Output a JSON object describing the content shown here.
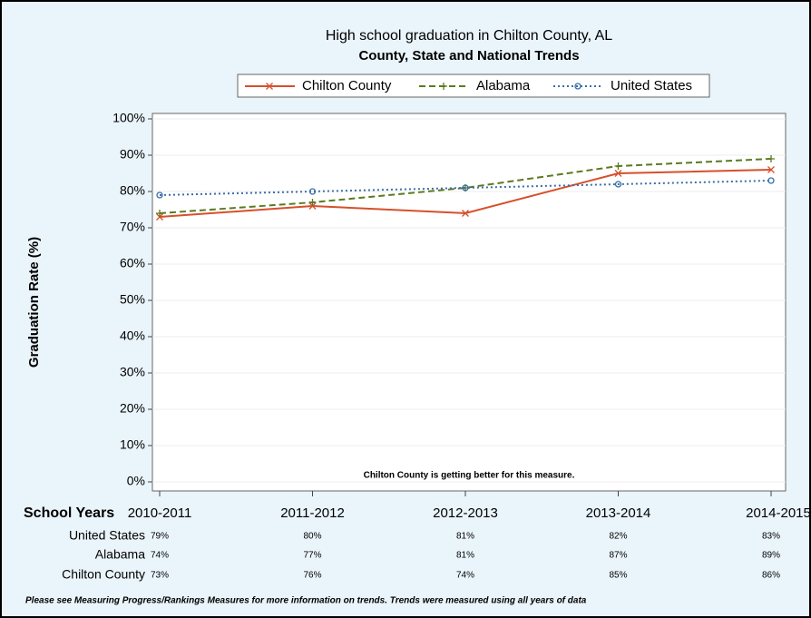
{
  "chart_data": {
    "type": "line",
    "title": "High school graduation in Chilton County, AL",
    "subtitle": "County, State and National Trends",
    "y_label": "Graduation Rate (%)",
    "x_label": "School Years",
    "annotation": "Chilton County is getting better for this measure.",
    "footnote": "Please see Measuring Progress/Rankings Measures for more information on trends. Trends were measured using all years of data",
    "categories": [
      "2010-2011",
      "2011-2012",
      "2012-2013",
      "2013-2014",
      "2014-2015"
    ],
    "series": [
      {
        "name": "Chilton County",
        "color": "#d6502b",
        "dash": "solid",
        "marker": "x",
        "values": [
          73,
          76,
          74,
          85,
          86
        ],
        "value_labels": [
          "73%",
          "76%",
          "74%",
          "85%",
          "86%"
        ]
      },
      {
        "name": "Alabama",
        "color": "#5b7a1f",
        "dash": "dashed",
        "marker": "plus",
        "values": [
          74,
          77,
          81,
          87,
          89
        ],
        "value_labels": [
          "74%",
          "77%",
          "81%",
          "87%",
          "89%"
        ]
      },
      {
        "name": "United States",
        "color": "#3a6ea8",
        "dash": "dotted",
        "marker": "circle",
        "values": [
          79,
          80,
          81,
          82,
          83
        ],
        "value_labels": [
          "79%",
          "80%",
          "81%",
          "82%",
          "83%"
        ]
      }
    ],
    "ylim": [
      0,
      100
    ],
    "yticks": [
      {
        "value": 0,
        "label": "0%"
      },
      {
        "value": 10,
        "label": "10%"
      },
      {
        "value": 20,
        "label": "20%"
      },
      {
        "value": 30,
        "label": "30%"
      },
      {
        "value": 40,
        "label": "40%"
      },
      {
        "value": 50,
        "label": "50%"
      },
      {
        "value": 60,
        "label": "60%"
      },
      {
        "value": 70,
        "label": "70%"
      },
      {
        "value": 80,
        "label": "80%"
      },
      {
        "value": 90,
        "label": "90%"
      },
      {
        "value": 100,
        "label": "100%"
      }
    ],
    "grid": true
  }
}
